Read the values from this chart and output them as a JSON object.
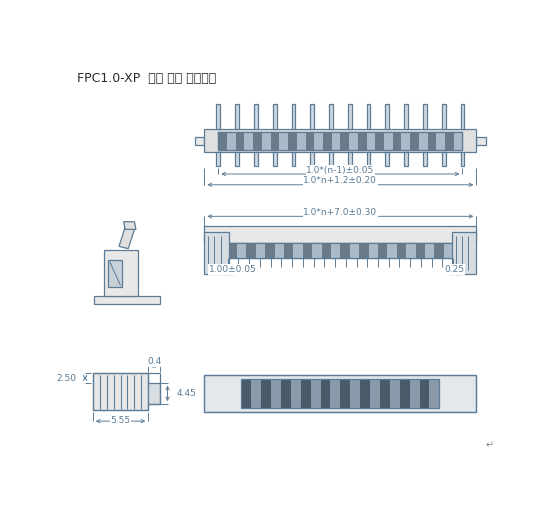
{
  "title": "FPC1.0-XP 立贴 带锁 反脚位。",
  "bg_color": "#ffffff",
  "line_color": "#5b7b96",
  "dim_color": "#5b7b96",
  "text_color": "#2a2a2a",
  "dim_label1": "1.0*(n-1)±0.05",
  "dim_label2": "1.0*n+1.2±0.20",
  "dim_label3": "1.0*n+7.0±0.30",
  "dim_label4": "1.00±0.05",
  "dim_label5": "0.25",
  "dim_label6": "0.4",
  "dim_label7": "4.45",
  "dim_label8": "5.55",
  "dim_label9": "2.50",
  "num_pins": 14,
  "figsize": [
    5.59,
    5.13
  ],
  "dpi": 100
}
